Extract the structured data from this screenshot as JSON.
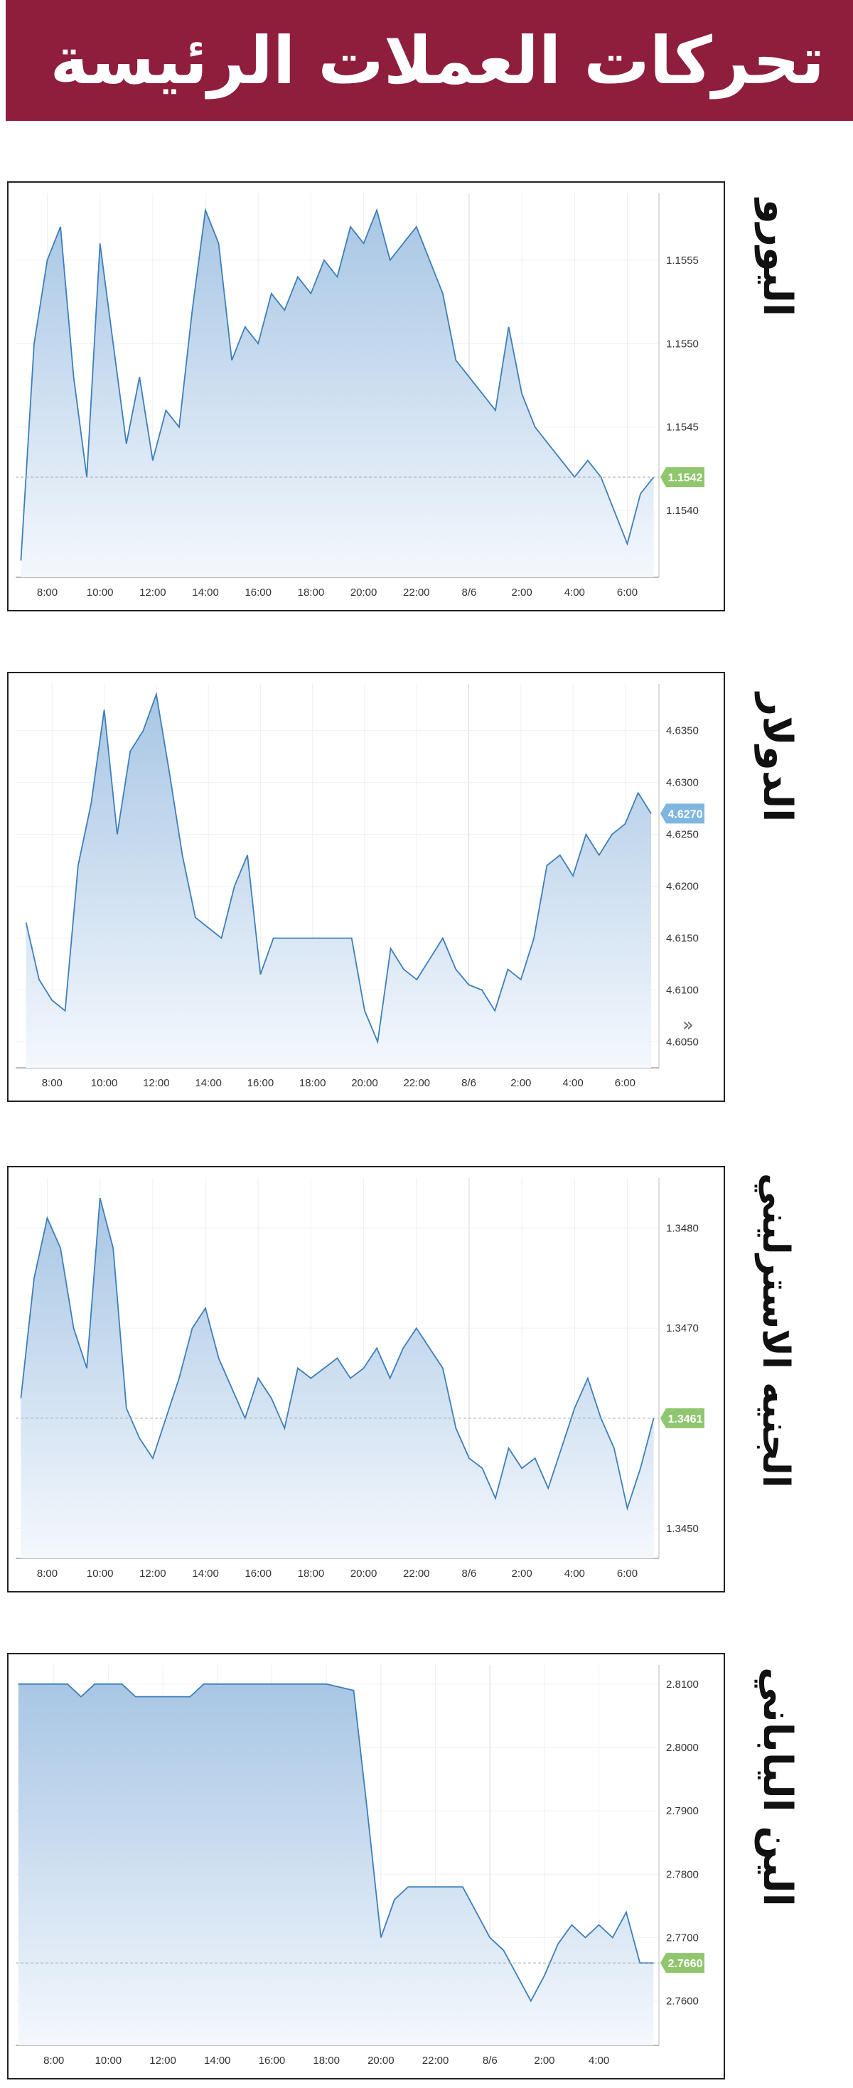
{
  "header": {
    "title": "تحركات العملات الرئيسة"
  },
  "colors": {
    "banner": "#8e1e3c",
    "line": "#3d7fba",
    "fill_top": "#a8c6e4",
    "fill_bottom": "#f4f8fd",
    "badge_green": "#8fc66e",
    "badge_blue": "#7fb6df"
  },
  "icons": {
    "nav": "double-chevron-right-icon"
  },
  "chart_data": [
    {
      "type": "area",
      "currency_label": "اليورو",
      "x_ticks": [
        "8:00",
        "10:00",
        "12:00",
        "14:00",
        "16:00",
        "18:00",
        "20:00",
        "22:00",
        "8/6",
        "2:00",
        "4:00",
        "6:00"
      ],
      "y_ticks": [
        "1.1555",
        "1.1550",
        "1.1545",
        "1.1540"
      ],
      "ylim": [
        1.1536,
        1.1559
      ],
      "current_value": "1.1542",
      "series": [
        {
          "x": [
            7.0,
            7.5,
            8.0,
            8.5,
            9.0,
            9.5,
            10.0,
            10.5,
            11.0,
            11.5,
            12.0,
            12.5,
            13.0,
            13.5,
            14.0,
            14.5,
            15.0,
            15.5,
            16.0,
            16.5,
            17.0,
            17.5,
            18.0,
            18.5,
            19.0,
            19.5,
            20.0,
            20.5,
            21.0,
            21.5,
            22.0,
            22.5,
            23.0,
            23.5,
            24.0,
            24.5,
            25.0,
            25.5,
            26.0,
            26.5,
            27.0,
            27.5,
            28.0,
            28.5,
            29.0,
            29.5,
            30.0,
            30.5,
            31.0
          ],
          "y": [
            1.1537,
            1.155,
            1.1555,
            1.1557,
            1.1548,
            1.1542,
            1.1556,
            1.155,
            1.1544,
            1.1548,
            1.1543,
            1.1546,
            1.1545,
            1.1552,
            1.1558,
            1.1556,
            1.1549,
            1.1551,
            1.155,
            1.1553,
            1.1552,
            1.1554,
            1.1553,
            1.1555,
            1.1554,
            1.1557,
            1.1556,
            1.1558,
            1.1555,
            1.1556,
            1.1557,
            1.1555,
            1.1553,
            1.1549,
            1.1548,
            1.1547,
            1.1546,
            1.1551,
            1.1547,
            1.1545,
            1.1544,
            1.1543,
            1.1542,
            1.1543,
            1.1542,
            1.154,
            1.1538,
            1.1541,
            1.1542
          ]
        }
      ]
    },
    {
      "type": "area",
      "currency_label": "الدولار",
      "x_ticks": [
        "8:00",
        "10:00",
        "12:00",
        "14:00",
        "16:00",
        "18:00",
        "20:00",
        "22:00",
        "8/6",
        "2:00",
        "4:00",
        "6:00"
      ],
      "y_ticks": [
        "4.6350",
        "4.6300",
        "4.6250",
        "4.6200",
        "4.6150",
        "4.6100",
        "4.6050"
      ],
      "ylim": [
        4.6025,
        4.6395
      ],
      "current_value": "4.6270",
      "series": [
        {
          "x": [
            7.0,
            7.5,
            8.0,
            8.5,
            9.0,
            9.5,
            10.0,
            10.5,
            11.0,
            11.5,
            12.0,
            12.5,
            13.0,
            13.5,
            14.0,
            14.5,
            15.0,
            15.5,
            16.0,
            16.5,
            17.0,
            17.5,
            18.0,
            18.5,
            19.0,
            19.5,
            20.0,
            20.5,
            21.0,
            21.5,
            22.0,
            22.5,
            23.0,
            23.5,
            24.0,
            24.5,
            25.0,
            25.5,
            26.0,
            26.5,
            27.0,
            27.5,
            28.0,
            28.5,
            29.0,
            29.5,
            30.0,
            30.5,
            31.0
          ],
          "y": [
            4.6165,
            4.611,
            4.609,
            4.608,
            4.622,
            4.628,
            4.637,
            4.625,
            4.633,
            4.635,
            4.6385,
            4.631,
            4.623,
            4.617,
            4.616,
            4.615,
            4.62,
            4.623,
            4.6115,
            4.615,
            4.615,
            4.615,
            4.615,
            4.615,
            4.615,
            4.615,
            4.608,
            4.605,
            4.614,
            4.612,
            4.611,
            4.613,
            4.615,
            4.612,
            4.6105,
            4.61,
            4.608,
            4.612,
            4.611,
            4.615,
            4.622,
            4.623,
            4.621,
            4.625,
            4.623,
            4.625,
            4.626,
            4.629,
            4.627
          ]
        }
      ]
    },
    {
      "type": "area",
      "currency_label": "الجنيه الاسترليني",
      "x_ticks": [
        "8:00",
        "10:00",
        "12:00",
        "14:00",
        "16:00",
        "18:00",
        "20:00",
        "22:00",
        "8/6",
        "2:00",
        "4:00",
        "6:00"
      ],
      "y_ticks": [
        "1.3480",
        "1.3470",
        "1.3450"
      ],
      "ylim": [
        1.3447,
        1.3485
      ],
      "current_value": "1.3461",
      "series": [
        {
          "x": [
            7.0,
            7.5,
            8.0,
            8.5,
            9.0,
            9.5,
            10.0,
            10.5,
            11.0,
            11.5,
            12.0,
            12.5,
            13.0,
            13.5,
            14.0,
            14.5,
            15.0,
            15.5,
            16.0,
            16.5,
            17.0,
            17.5,
            18.0,
            18.5,
            19.0,
            19.5,
            20.0,
            20.5,
            21.0,
            21.5,
            22.0,
            22.5,
            23.0,
            23.5,
            24.0,
            24.5,
            25.0,
            25.5,
            26.0,
            26.5,
            27.0,
            27.5,
            28.0,
            28.5,
            29.0,
            29.5,
            30.0,
            30.5,
            31.0
          ],
          "y": [
            1.3463,
            1.3475,
            1.3481,
            1.3478,
            1.347,
            1.3466,
            1.3483,
            1.3478,
            1.3462,
            1.3459,
            1.3457,
            1.3461,
            1.3465,
            1.347,
            1.3472,
            1.3467,
            1.3464,
            1.3461,
            1.3465,
            1.3463,
            1.346,
            1.3466,
            1.3465,
            1.3466,
            1.3467,
            1.3465,
            1.3466,
            1.3468,
            1.3465,
            1.3468,
            1.347,
            1.3468,
            1.3466,
            1.346,
            1.3457,
            1.3456,
            1.3453,
            1.3458,
            1.3456,
            1.3457,
            1.3454,
            1.3458,
            1.3462,
            1.3465,
            1.3461,
            1.3458,
            1.3452,
            1.3456,
            1.3461
          ]
        }
      ]
    },
    {
      "type": "area",
      "currency_label": "الين الياباني",
      "x_ticks": [
        "8:00",
        "10:00",
        "12:00",
        "14:00",
        "16:00",
        "18:00",
        "20:00",
        "22:00",
        "8/6",
        "2:00",
        "4:00"
      ],
      "y_ticks": [
        "2.8100",
        "2.8000",
        "2.7900",
        "2.7800",
        "2.7700",
        "2.7600"
      ],
      "ylim": [
        2.753,
        2.813
      ],
      "current_value": "2.7660",
      "series": [
        {
          "x": [
            6.7,
            8.5,
            9.0,
            9.5,
            10.0,
            10.5,
            11.0,
            11.5,
            12.0,
            12.5,
            13.0,
            13.5,
            14.0,
            15.0,
            16.0,
            17.0,
            18.0,
            19.0,
            19.5,
            20.0,
            20.5,
            21.0,
            21.5,
            22.0,
            22.5,
            23.0,
            23.5,
            24.0,
            24.5,
            25.0,
            25.5,
            26.0,
            26.5,
            27.0,
            27.5,
            28.0,
            28.5,
            29.0,
            29.5,
            30.0
          ],
          "y": [
            2.81,
            2.81,
            2.808,
            2.81,
            2.81,
            2.81,
            2.808,
            2.808,
            2.808,
            2.808,
            2.808,
            2.81,
            2.81,
            2.81,
            2.81,
            2.81,
            2.81,
            2.809,
            2.79,
            2.77,
            2.776,
            2.778,
            2.778,
            2.778,
            2.778,
            2.778,
            2.774,
            2.77,
            2.768,
            2.764,
            2.76,
            2.764,
            2.769,
            2.772,
            2.77,
            2.772,
            2.77,
            2.774,
            2.766,
            2.766
          ]
        }
      ]
    }
  ]
}
